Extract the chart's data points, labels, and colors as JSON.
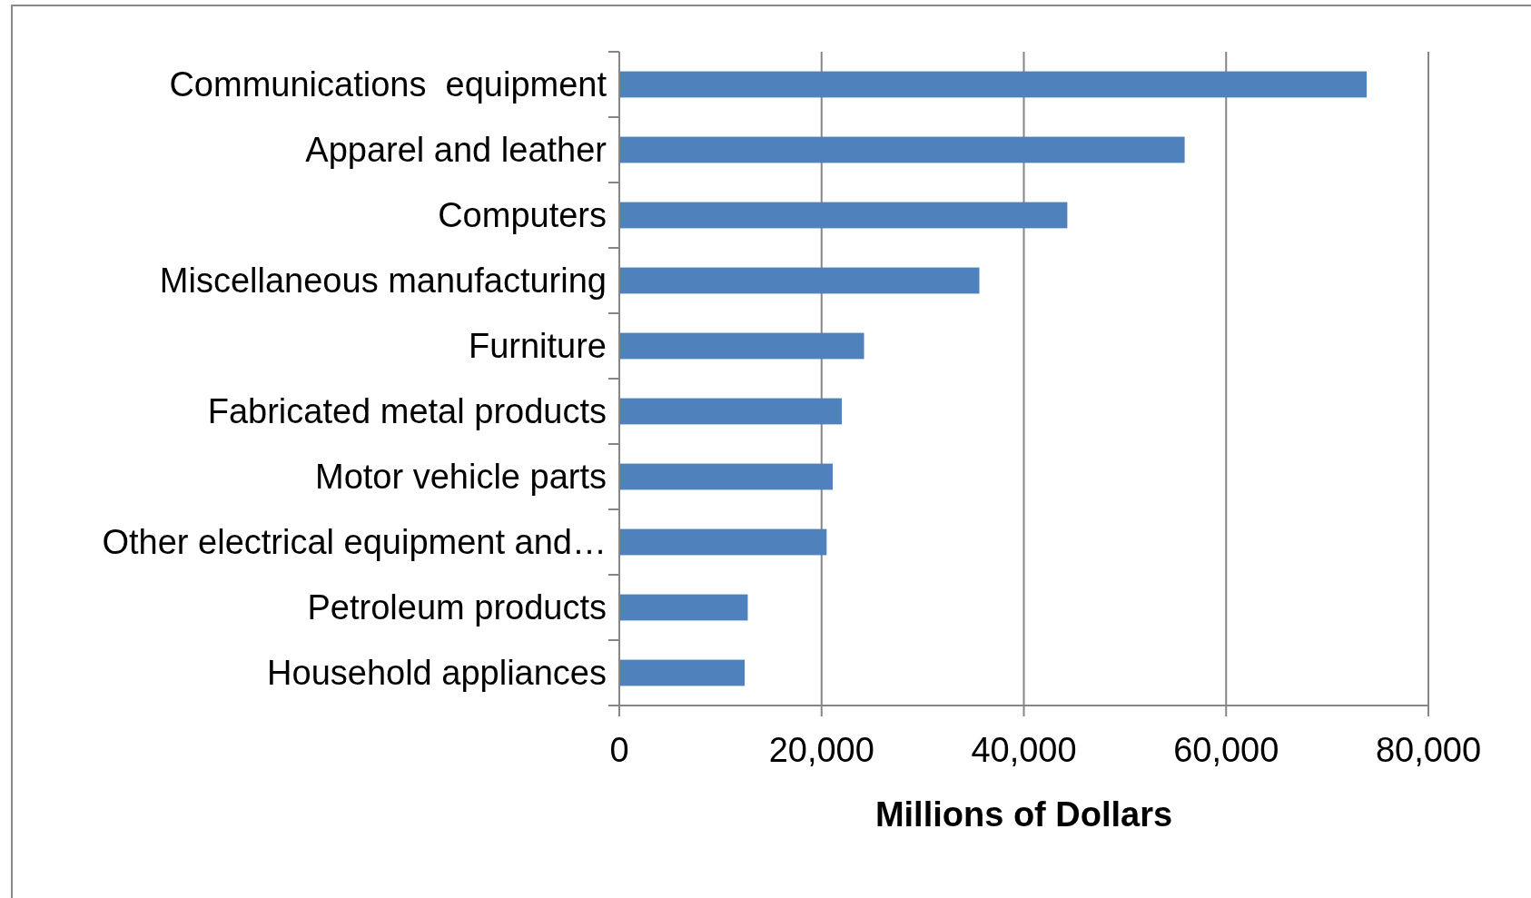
{
  "chart_data": {
    "type": "bar",
    "orientation": "horizontal",
    "xlabel": "Millions of Dollars",
    "categories": [
      "Communications  equipment",
      "Apparel and leather",
      "Computers",
      "Miscellaneous manufacturing",
      "Furniture",
      "Fabricated metal products",
      "Motor vehicle parts",
      "Other electrical equipment and…",
      "Petroleum products",
      "Household appliances"
    ],
    "values": [
      73900,
      55900,
      44300,
      35600,
      24200,
      22000,
      21100,
      20500,
      12700,
      12400
    ],
    "color": "#4f81bd",
    "xlim": [
      0,
      80000
    ],
    "xticks": [
      {
        "value": 0,
        "label": "0"
      },
      {
        "value": 20000,
        "label": "20,000"
      },
      {
        "value": 40000,
        "label": "40,000"
      },
      {
        "value": 60000,
        "label": "60,000"
      },
      {
        "value": 80000,
        "label": "80,000"
      }
    ],
    "grid": "x"
  }
}
